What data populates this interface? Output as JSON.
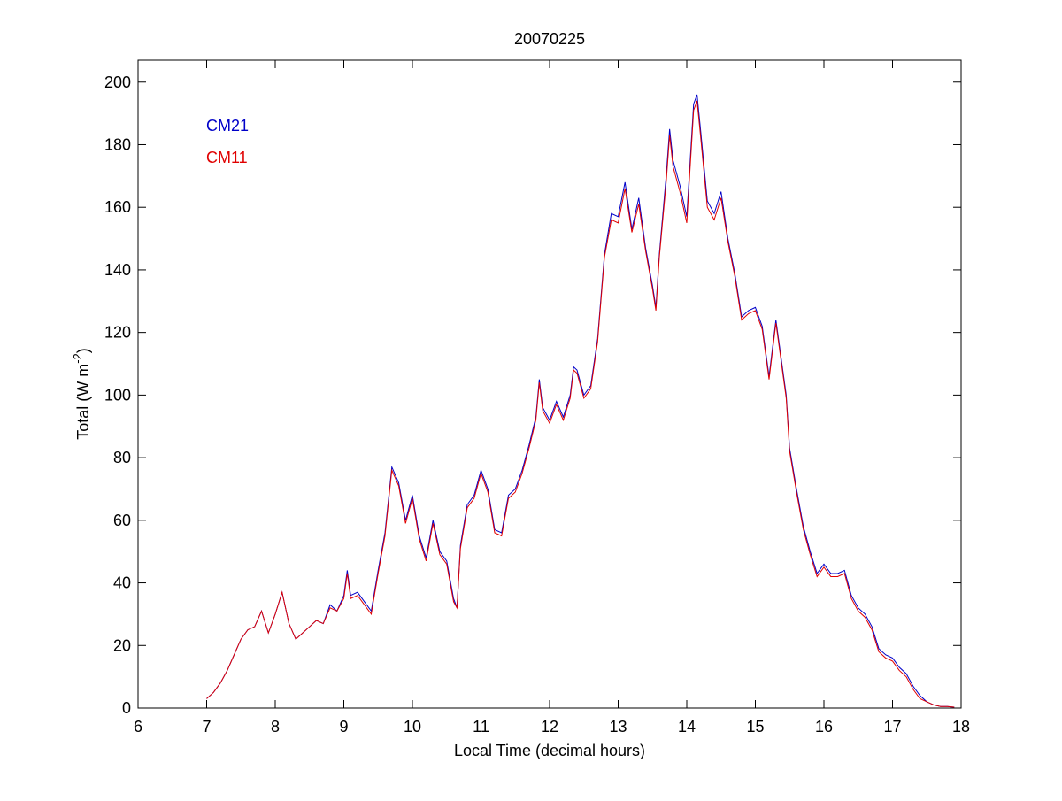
{
  "chart_data": {
    "type": "line",
    "title": "20070225",
    "xlabel": "Local Time (decimal hours)",
    "ylabel_parts": [
      "Total (W m",
      "-2",
      ")"
    ],
    "x": [
      7.0,
      7.1,
      7.2,
      7.3,
      7.4,
      7.5,
      7.6,
      7.7,
      7.8,
      7.9,
      8.0,
      8.1,
      8.2,
      8.3,
      8.4,
      8.5,
      8.6,
      8.7,
      8.8,
      8.9,
      9.0,
      9.05,
      9.1,
      9.2,
      9.3,
      9.4,
      9.5,
      9.6,
      9.7,
      9.8,
      9.9,
      10.0,
      10.1,
      10.2,
      10.3,
      10.4,
      10.5,
      10.6,
      10.65,
      10.7,
      10.8,
      10.9,
      11.0,
      11.1,
      11.2,
      11.3,
      11.4,
      11.5,
      11.6,
      11.7,
      11.8,
      11.85,
      11.9,
      12.0,
      12.1,
      12.2,
      12.3,
      12.35,
      12.4,
      12.5,
      12.6,
      12.7,
      12.8,
      12.9,
      13.0,
      13.1,
      13.2,
      13.3,
      13.4,
      13.5,
      13.55,
      13.6,
      13.7,
      13.75,
      13.8,
      13.9,
      14.0,
      14.1,
      14.15,
      14.2,
      14.3,
      14.4,
      14.5,
      14.6,
      14.7,
      14.8,
      14.9,
      15.0,
      15.1,
      15.2,
      15.3,
      15.4,
      15.45,
      15.5,
      15.6,
      15.7,
      15.8,
      15.9,
      16.0,
      16.1,
      16.2,
      16.3,
      16.4,
      16.5,
      16.6,
      16.7,
      16.8,
      16.9,
      17.0,
      17.1,
      17.2,
      17.3,
      17.4,
      17.5,
      17.6,
      17.7,
      17.8,
      17.9
    ],
    "series": [
      {
        "name": "CM21",
        "color": "#0000c8",
        "values": [
          3,
          5,
          8,
          12,
          17,
          22,
          25,
          26,
          31,
          24,
          30,
          37,
          27,
          22,
          24,
          26,
          28,
          27,
          33,
          31,
          36,
          44,
          36,
          37,
          34,
          31,
          44,
          56,
          77,
          72,
          60,
          68,
          55,
          48,
          60,
          50,
          47,
          35,
          32,
          52,
          65,
          68,
          76,
          70,
          57,
          56,
          68,
          70,
          76,
          84,
          93,
          105,
          96,
          92,
          98,
          93,
          100,
          109,
          108,
          100,
          103,
          118,
          145,
          158,
          157,
          168,
          153,
          163,
          147,
          135,
          128,
          145,
          170,
          185,
          175,
          167,
          157,
          193,
          196,
          185,
          162,
          158,
          165,
          150,
          139,
          125,
          127,
          128,
          122,
          106,
          124,
          108,
          100,
          83,
          70,
          58,
          50,
          43,
          46,
          43,
          43,
          44,
          36,
          32,
          30,
          26,
          19,
          17,
          16,
          13,
          11,
          7,
          4,
          2,
          1,
          0.5,
          0.5,
          0.3
        ]
      },
      {
        "name": "CM11",
        "color": "#e00000",
        "values": [
          3,
          5,
          8,
          12,
          17,
          22,
          25,
          26,
          31,
          24,
          30,
          37,
          27,
          22,
          24,
          26,
          28,
          27,
          32,
          31,
          35,
          43,
          35,
          36,
          33,
          30,
          43,
          55,
          76,
          71,
          59,
          67,
          54,
          47,
          59,
          49,
          46,
          34,
          32,
          51,
          64,
          67,
          75,
          69,
          56,
          55,
          67,
          69,
          75,
          83,
          92,
          104,
          95,
          91,
          97,
          92,
          99,
          108,
          107,
          99,
          102,
          117,
          144,
          156,
          155,
          166,
          152,
          161,
          146,
          134,
          127,
          144,
          168,
          183,
          173,
          165,
          155,
          191,
          194,
          183,
          160,
          156,
          163,
          149,
          138,
          124,
          126,
          127,
          121,
          105,
          123,
          107,
          99,
          82,
          69,
          57,
          49,
          42,
          45,
          42,
          42,
          43,
          35,
          31,
          29,
          25,
          18,
          16,
          15,
          12,
          10,
          6,
          3,
          2,
          1,
          0.5,
          0.5,
          0.3
        ]
      }
    ],
    "xlim": [
      6,
      18
    ],
    "xticks": [
      6,
      7,
      8,
      9,
      10,
      11,
      12,
      13,
      14,
      15,
      16,
      17,
      18
    ],
    "ylim": [
      0,
      207
    ],
    "yticks": [
      0,
      20,
      40,
      60,
      80,
      100,
      120,
      140,
      160,
      180,
      200
    ],
    "legend": "upper left",
    "grid": false
  }
}
